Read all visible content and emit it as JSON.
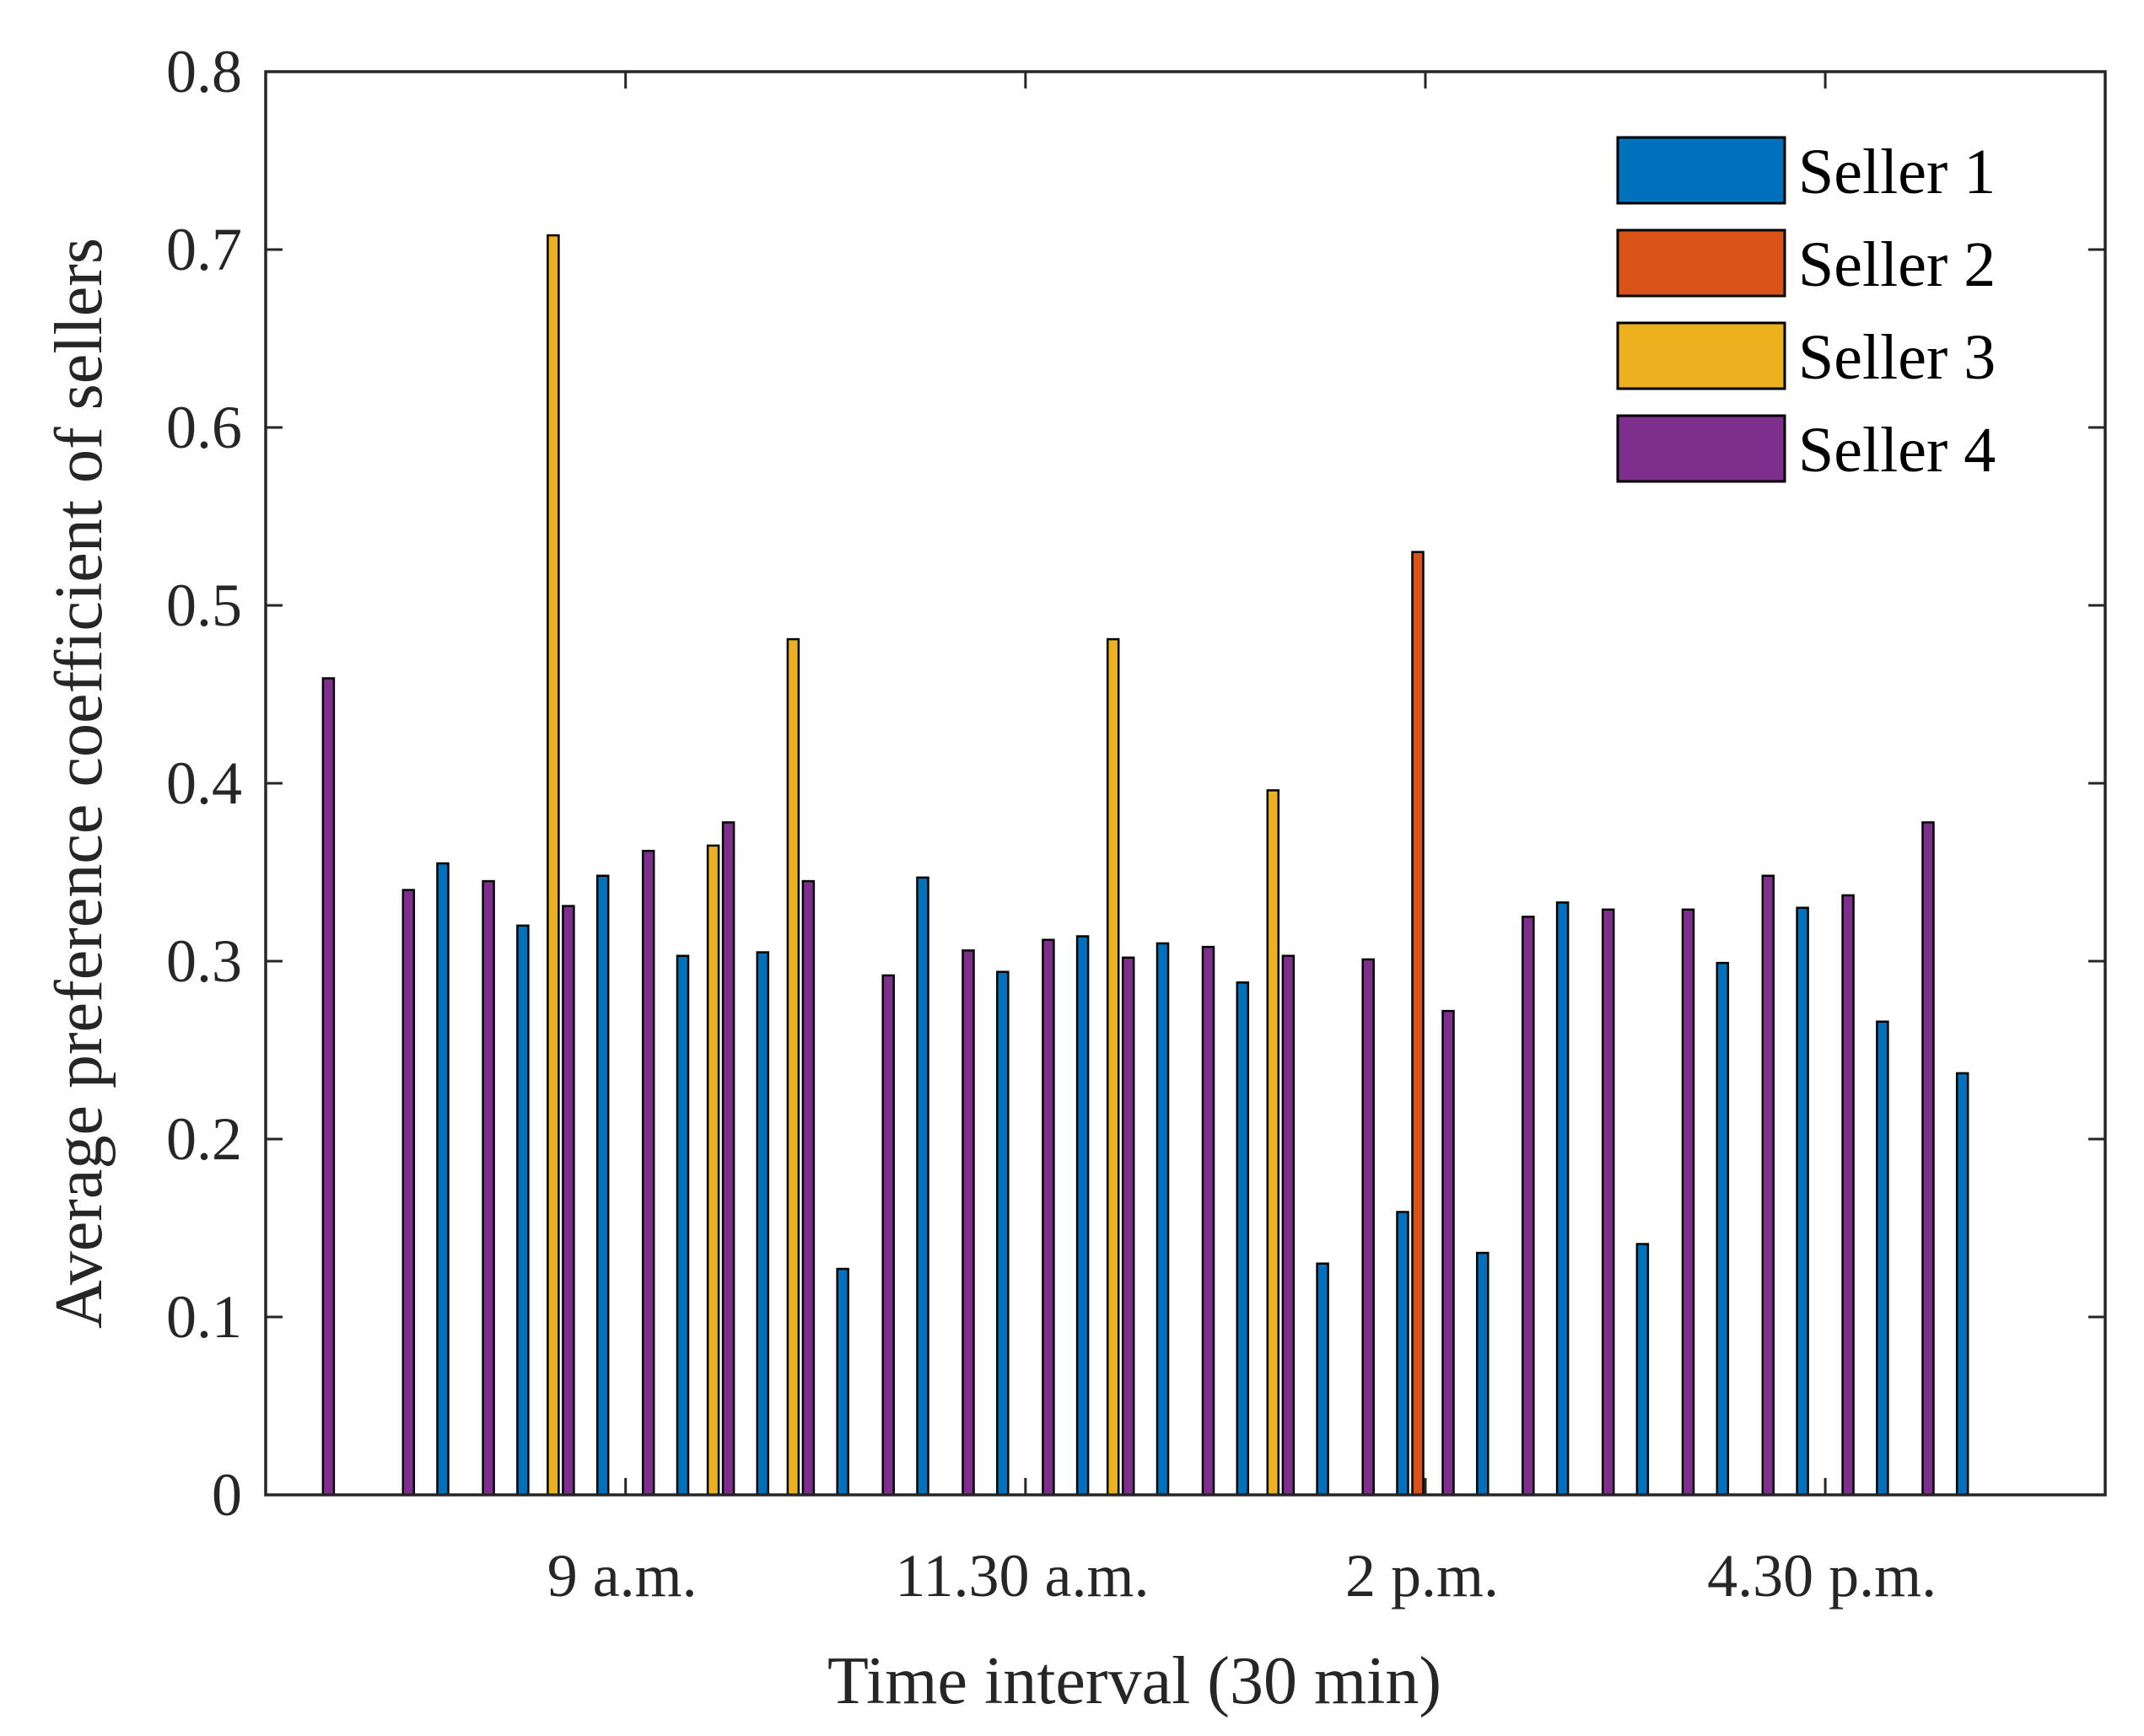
{
  "chart_data": {
    "type": "bar",
    "title": "",
    "xlabel": "Time interval (30 min)",
    "ylabel": "Average preference coefficient of sellers",
    "ylim": [
      0,
      0.8
    ],
    "yticks": [
      "0",
      "0.1",
      "0.2",
      "0.3",
      "0.4",
      "0.5",
      "0.6",
      "0.7",
      "0.8"
    ],
    "xlim": [
      0.5,
      23.5
    ],
    "xticks": [
      {
        "x": 5,
        "label": "9 a.m."
      },
      {
        "x": 10,
        "label": "11.30 a.m."
      },
      {
        "x": 15,
        "label": "2 p.m."
      },
      {
        "x": 20,
        "label": "4.30 p.m."
      }
    ],
    "legend_position": "top-right",
    "series": [
      {
        "name": "Seller 1",
        "color": "#0072BD",
        "values": [
          0,
          0,
          0.355,
          0.32,
          0.348,
          0.303,
          0.305,
          0.127,
          0.347,
          0.294,
          0.314,
          0.31,
          0.288,
          0.13,
          0.159,
          0.136,
          0.333,
          0.141,
          0.299,
          0.33,
          0.266,
          0.237,
          0
        ]
      },
      {
        "name": "Seller 2",
        "color": "#D95319",
        "values": [
          0,
          0,
          0,
          0,
          0,
          0,
          0,
          0,
          0,
          0,
          0,
          0,
          0,
          0,
          0.53,
          0,
          0,
          0,
          0,
          0,
          0,
          0,
          0
        ]
      },
      {
        "name": "Seller 3",
        "color": "#EDB120",
        "values": [
          0,
          0,
          0,
          0.708,
          0,
          0.365,
          0.481,
          0,
          0,
          0,
          0.481,
          0,
          0.396,
          0,
          0,
          0,
          0,
          0,
          0,
          0,
          0,
          0,
          0
        ]
      },
      {
        "name": "Seller 4",
        "color": "#7E2F8E",
        "values": [
          0.459,
          0.34,
          0.345,
          0.331,
          0.362,
          0.378,
          0.345,
          0.292,
          0.306,
          0.312,
          0.302,
          0.308,
          0.303,
          0.301,
          0.272,
          0.325,
          0.329,
          0.329,
          0.348,
          0.337,
          0.378,
          0,
          0
        ]
      }
    ]
  }
}
